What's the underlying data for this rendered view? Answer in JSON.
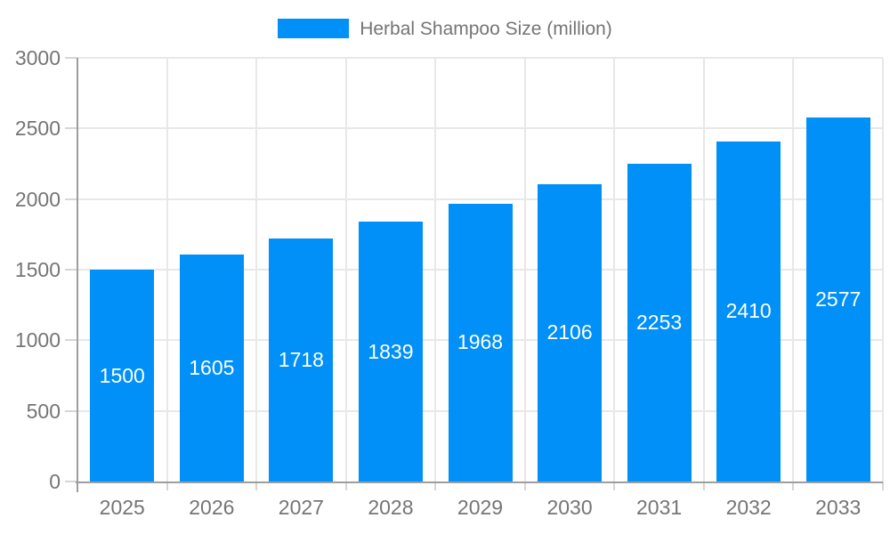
{
  "legend": {
    "label": "Herbal Shampoo Size (million)"
  },
  "colors": {
    "bar": "#0090f7",
    "bar_label": "#ffffff",
    "axis_text": "#757575",
    "grid": "#e8e8e8",
    "tick": "#d6d6d6",
    "axis_line": "#9e9e9e",
    "background": "#ffffff"
  },
  "chart_data": {
    "type": "bar",
    "title": "Herbal Shampoo Size (million)",
    "series_name": "Herbal Shampoo Size (million)",
    "categories": [
      "2025",
      "2026",
      "2027",
      "2028",
      "2029",
      "2030",
      "2031",
      "2032",
      "2033"
    ],
    "values": [
      1500,
      1605,
      1718,
      1839,
      1968,
      2106,
      2253,
      2410,
      2577
    ],
    "xlabel": "",
    "ylabel": "",
    "ylim": [
      0,
      3000
    ],
    "yticks": [
      0,
      500,
      1000,
      1500,
      2000,
      2500,
      3000
    ],
    "grid": true,
    "legend_position": "top",
    "bar_labels": "inside-center"
  }
}
